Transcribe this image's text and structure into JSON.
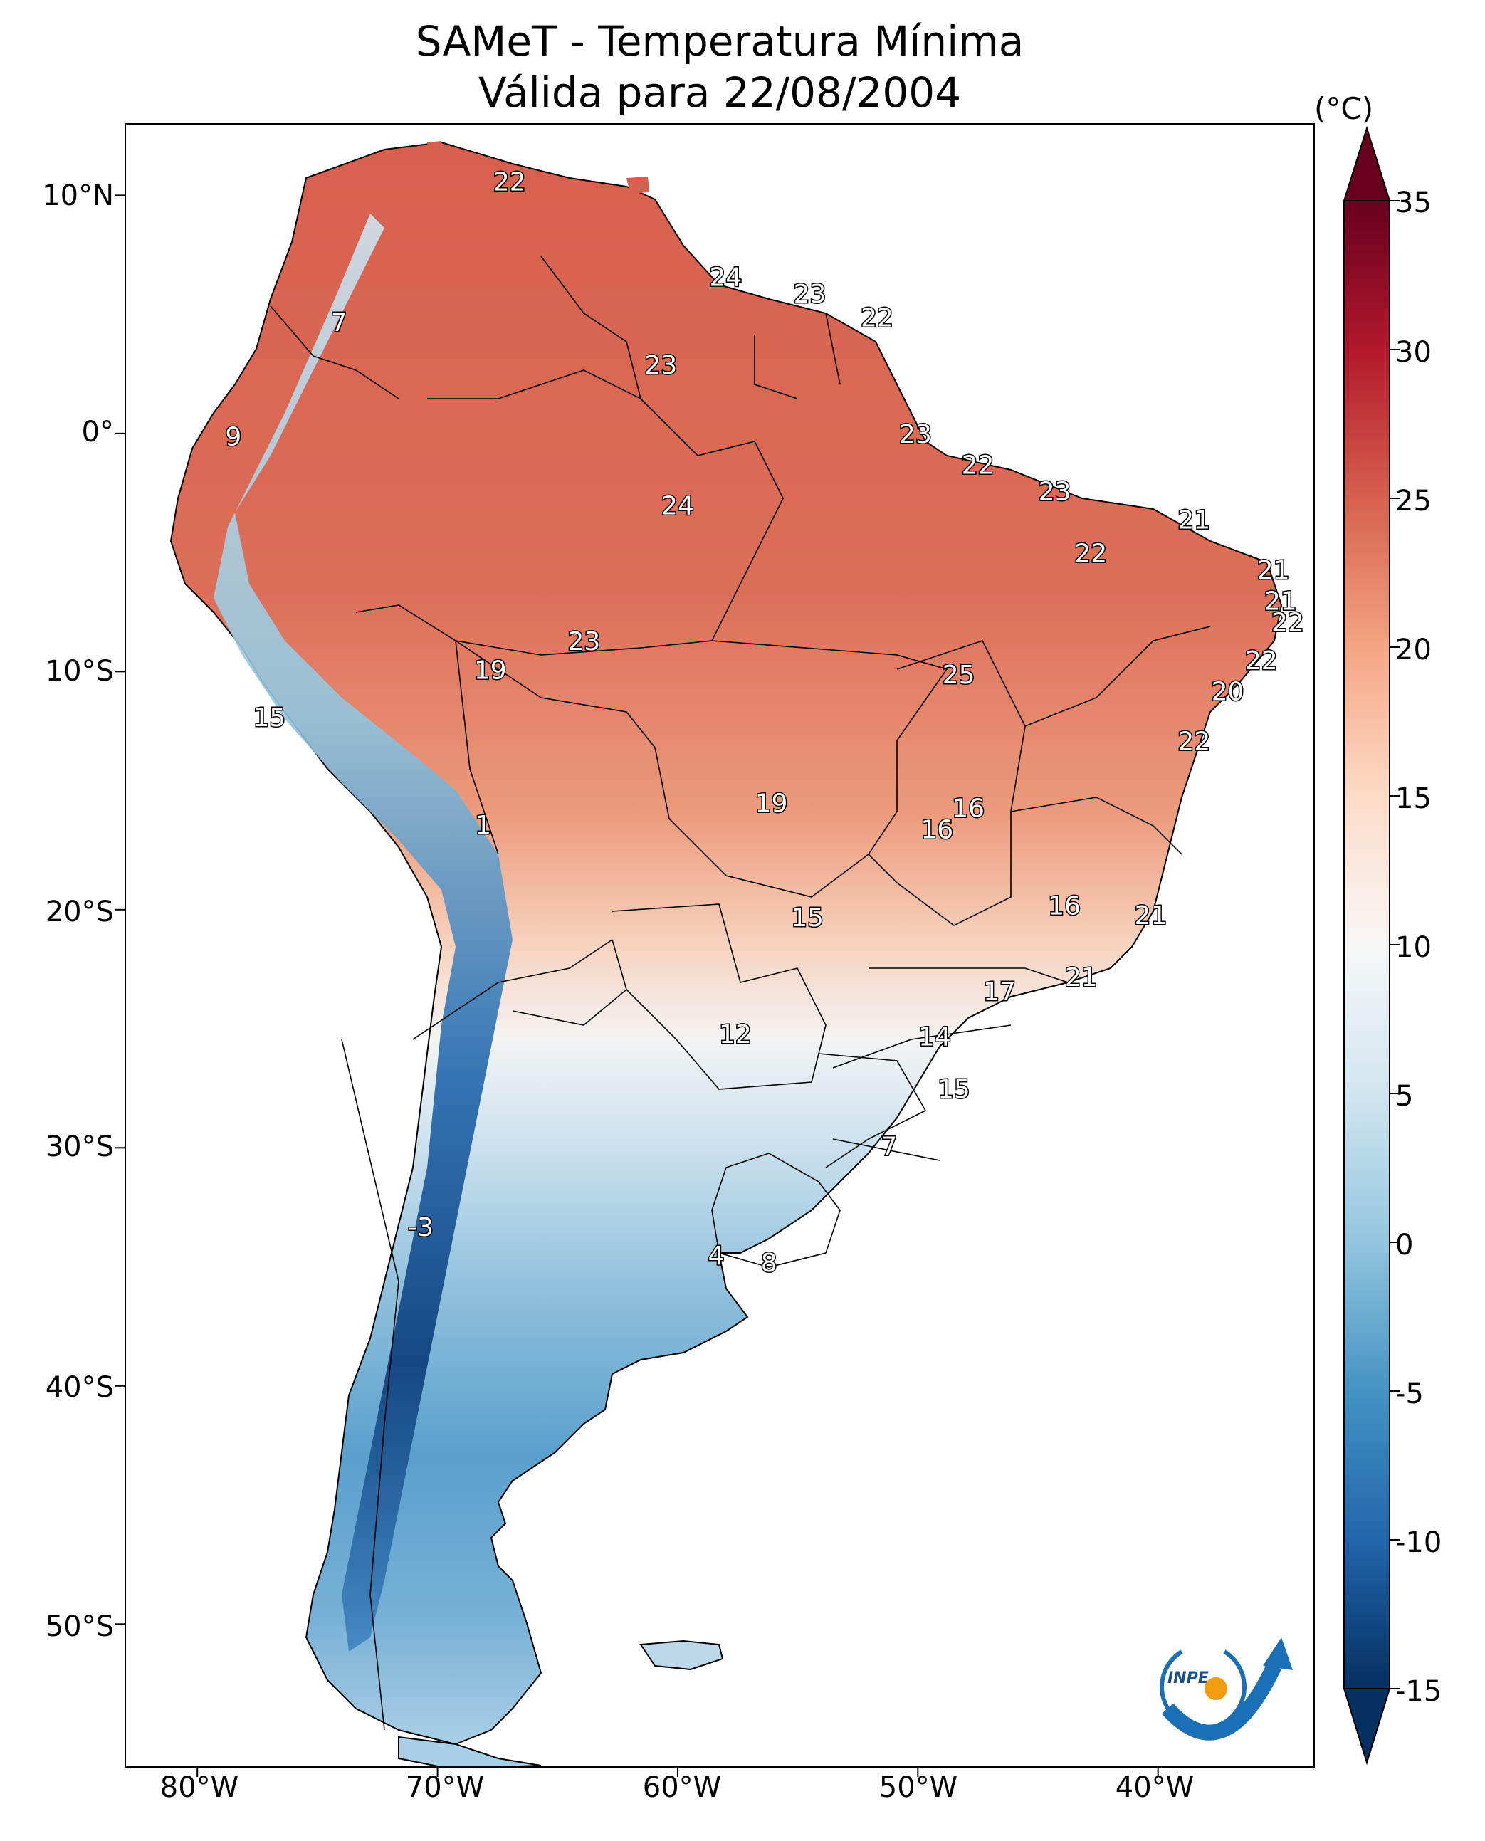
{
  "title": {
    "line1": "SAMeT - Temperatura Mínima",
    "line2": "Válida para 22/08/2004"
  },
  "axes": {
    "lat_ticks": [
      "10°N",
      "0°",
      "10°S",
      "20°S",
      "30°S",
      "40°S",
      "50°S"
    ],
    "lon_ticks": [
      "80°W",
      "70°W",
      "60°W",
      "50°W",
      "40°W"
    ]
  },
  "colorbar": {
    "unit": "(°C)",
    "ticks": [
      "35",
      "30",
      "25",
      "20",
      "15",
      "10",
      "5",
      "0",
      "-5",
      "-10",
      "-15"
    ],
    "range": [
      -15,
      35
    ],
    "colormap": "RdBu_r",
    "colors": [
      "#053061",
      "#2166ac",
      "#4393c3",
      "#92c5de",
      "#d1e5f0",
      "#f7f7f7",
      "#fddbc7",
      "#f4a582",
      "#d6604d",
      "#b2182b",
      "#67001f"
    ]
  },
  "station_values": [
    {
      "label": "22",
      "lon": -67,
      "lat": 10.5
    },
    {
      "label": "24",
      "lon": -58,
      "lat": 6.5
    },
    {
      "label": "23",
      "lon": -54.5,
      "lat": 5.8
    },
    {
      "label": "22",
      "lon": -51.7,
      "lat": 4.8
    },
    {
      "label": "7",
      "lon": -74.1,
      "lat": 4.6
    },
    {
      "label": "23",
      "lon": -60.7,
      "lat": 2.8
    },
    {
      "label": "9",
      "lon": -78.5,
      "lat": -0.2
    },
    {
      "label": "23",
      "lon": -50.1,
      "lat": -0.1
    },
    {
      "label": "22",
      "lon": -47.5,
      "lat": -1.4
    },
    {
      "label": "23",
      "lon": -44.3,
      "lat": -2.5
    },
    {
      "label": "24",
      "lon": -60,
      "lat": -3.1
    },
    {
      "label": "21",
      "lon": -38.5,
      "lat": -3.7
    },
    {
      "label": "22",
      "lon": -42.8,
      "lat": -5.1
    },
    {
      "label": "21",
      "lon": -35.2,
      "lat": -5.8
    },
    {
      "label": "21",
      "lon": -34.9,
      "lat": -7.1
    },
    {
      "label": "22",
      "lon": -34.6,
      "lat": -8
    },
    {
      "label": "23",
      "lon": -63.9,
      "lat": -8.8
    },
    {
      "label": "22",
      "lon": -35.7,
      "lat": -9.6
    },
    {
      "label": "19",
      "lon": -67.8,
      "lat": -10
    },
    {
      "label": "25",
      "lon": -48.3,
      "lat": -10.2
    },
    {
      "label": "20",
      "lon": -37.1,
      "lat": -10.9
    },
    {
      "label": "15",
      "lon": -77,
      "lat": -12
    },
    {
      "label": "22",
      "lon": -38.5,
      "lat": -13
    },
    {
      "label": "19",
      "lon": -56.1,
      "lat": -15.6
    },
    {
      "label": "16",
      "lon": -47.9,
      "lat": -15.8
    },
    {
      "label": "16",
      "lon": -49.2,
      "lat": -16.7
    },
    {
      "label": "1",
      "lon": -68.1,
      "lat": -16.5
    },
    {
      "label": "16",
      "lon": -43.9,
      "lat": -19.9
    },
    {
      "label": "21",
      "lon": -40.3,
      "lat": -20.3
    },
    {
      "label": "15",
      "lon": -54.6,
      "lat": -20.4
    },
    {
      "label": "21",
      "lon": -43.2,
      "lat": -22.9
    },
    {
      "label": "17",
      "lon": -46.6,
      "lat": -23.5
    },
    {
      "label": "12",
      "lon": -57.6,
      "lat": -25.3
    },
    {
      "label": "14",
      "lon": -49.3,
      "lat": -25.4
    },
    {
      "label": "15",
      "lon": -48.5,
      "lat": -27.6
    },
    {
      "label": "7",
      "lon": -51.2,
      "lat": -30
    },
    {
      "label": "-3",
      "lon": -70.7,
      "lat": -33.4
    },
    {
      "label": "4",
      "lon": -58.4,
      "lat": -34.6
    },
    {
      "label": "8",
      "lon": -56.2,
      "lat": -34.9
    }
  ],
  "logo": {
    "text": "INPE"
  }
}
